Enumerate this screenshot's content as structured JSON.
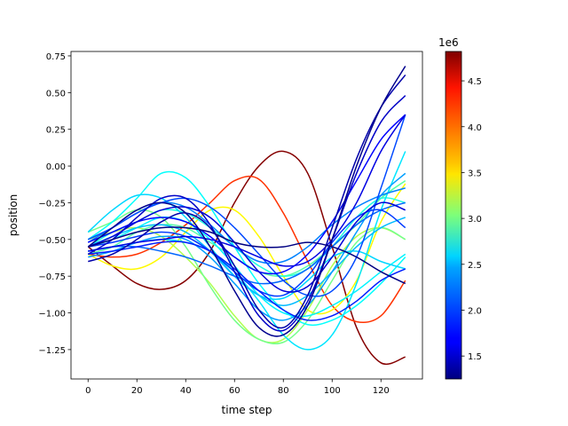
{
  "chart_data": {
    "type": "line",
    "xlabel": "time step",
    "ylabel": "position",
    "xlim": [
      -7,
      137
    ],
    "ylim": [
      -1.45,
      0.78
    ],
    "xticks": [
      0,
      20,
      40,
      60,
      80,
      100,
      120
    ],
    "yticks": [
      0.75,
      0.5,
      0.25,
      0.0,
      -0.25,
      -0.5,
      -0.75,
      -1.0,
      -1.25
    ],
    "grid": false,
    "legend": "none",
    "colormap": "jet",
    "colorbar": {
      "min": 1250000,
      "max": 4820000,
      "ticks": [
        1.5,
        2.0,
        2.5,
        3.0,
        3.5,
        4.0,
        4.5
      ],
      "offset_label": "1e6"
    },
    "series": [
      {
        "c": 4800000,
        "x": [
          0,
          10,
          20,
          30,
          40,
          50,
          60,
          70,
          80,
          90,
          100,
          110,
          120,
          130
        ],
        "y": [
          -0.55,
          -0.68,
          -0.8,
          -0.84,
          -0.78,
          -0.58,
          -0.25,
          0.0,
          0.1,
          -0.05,
          -0.55,
          -1.1,
          -1.34,
          -1.3
        ]
      },
      {
        "c": 4200000,
        "x": [
          0,
          10,
          20,
          30,
          40,
          50,
          60,
          70,
          80,
          90,
          100,
          110,
          120,
          130
        ],
        "y": [
          -0.6,
          -0.62,
          -0.6,
          -0.52,
          -0.4,
          -0.25,
          -0.1,
          -0.09,
          -0.32,
          -0.65,
          -0.95,
          -1.06,
          -1.02,
          -0.78
        ]
      },
      {
        "c": 3500000,
        "x": [
          0,
          10,
          20,
          30,
          40,
          50,
          60,
          70,
          80,
          90,
          100,
          110,
          120,
          130
        ],
        "y": [
          -0.6,
          -0.68,
          -0.7,
          -0.62,
          -0.45,
          -0.3,
          -0.3,
          -0.48,
          -0.75,
          -0.98,
          -0.98,
          -0.78,
          -0.38,
          -0.12
        ]
      },
      {
        "c": 3200000,
        "x": [
          0,
          10,
          20,
          30,
          40,
          50,
          60,
          70,
          80,
          90,
          100,
          110,
          120,
          130
        ],
        "y": [
          -0.5,
          -0.45,
          -0.42,
          -0.48,
          -0.62,
          -0.8,
          -1.02,
          -1.18,
          -1.18,
          -0.98,
          -0.68,
          -0.48,
          -0.42,
          -0.5
        ]
      },
      {
        "c": 3000000,
        "x": [
          0,
          10,
          20,
          30,
          40,
          50,
          60,
          70,
          80,
          90,
          100,
          110,
          120,
          130
        ],
        "y": [
          -0.45,
          -0.38,
          -0.3,
          -0.35,
          -0.55,
          -0.82,
          -1.05,
          -1.18,
          -1.2,
          -1.05,
          -0.78,
          -0.52,
          -0.42,
          -0.5
        ]
      },
      {
        "c": 2900000,
        "x": [
          0,
          10,
          20,
          30,
          40,
          50,
          60,
          70,
          80,
          90,
          100,
          110,
          120,
          130
        ],
        "y": [
          -0.6,
          -0.55,
          -0.45,
          -0.4,
          -0.42,
          -0.52,
          -0.62,
          -0.72,
          -0.75,
          -0.68,
          -0.55,
          -0.4,
          -0.22,
          -0.1
        ]
      },
      {
        "c": 2700000,
        "x": [
          0,
          10,
          20,
          30,
          40,
          50,
          60,
          70,
          80,
          90,
          100,
          110,
          120,
          130
        ],
        "y": [
          -0.55,
          -0.45,
          -0.38,
          -0.3,
          -0.32,
          -0.42,
          -0.55,
          -0.68,
          -0.75,
          -0.7,
          -0.55,
          -0.35,
          -0.22,
          -0.25
        ]
      },
      {
        "c": 2600000,
        "x": [
          0,
          10,
          20,
          30,
          40,
          50,
          60,
          70,
          80,
          90,
          100,
          110,
          120,
          130
        ],
        "y": [
          -0.5,
          -0.38,
          -0.22,
          -0.05,
          -0.08,
          -0.28,
          -0.55,
          -0.8,
          -0.98,
          -1.08,
          -1.05,
          -0.95,
          -0.8,
          -0.62
        ]
      },
      {
        "c": 2550000,
        "x": [
          0,
          10,
          20,
          30,
          40,
          50,
          60,
          70,
          80,
          90,
          100,
          110,
          120,
          130
        ],
        "y": [
          -0.55,
          -0.5,
          -0.42,
          -0.35,
          -0.38,
          -0.5,
          -0.68,
          -0.88,
          -1.0,
          -1.02,
          -0.95,
          -0.85,
          -0.72,
          -0.6
        ]
      },
      {
        "c": 2500000,
        "x": [
          0,
          10,
          20,
          30,
          40,
          50,
          60,
          70,
          80,
          90,
          100,
          110,
          120,
          130
        ],
        "y": [
          -0.58,
          -0.55,
          -0.52,
          -0.5,
          -0.52,
          -0.58,
          -0.72,
          -0.92,
          -1.15,
          -1.25,
          -1.15,
          -0.8,
          -0.3,
          0.1
        ]
      },
      {
        "c": 2450000,
        "x": [
          0,
          10,
          20,
          30,
          40,
          50,
          60,
          70,
          80,
          90,
          100,
          110,
          120,
          130
        ],
        "y": [
          -0.45,
          -0.3,
          -0.2,
          -0.22,
          -0.35,
          -0.55,
          -0.75,
          -0.88,
          -0.9,
          -0.78,
          -0.62,
          -0.58,
          -0.65,
          -0.7
        ]
      },
      {
        "c": 2350000,
        "x": [
          0,
          10,
          20,
          30,
          40,
          50,
          60,
          70,
          80,
          90,
          100,
          110,
          120,
          130
        ],
        "y": [
          -0.55,
          -0.48,
          -0.42,
          -0.4,
          -0.45,
          -0.58,
          -0.75,
          -0.88,
          -0.95,
          -0.88,
          -0.72,
          -0.55,
          -0.42,
          -0.35
        ]
      },
      {
        "c": 2250000,
        "x": [
          0,
          10,
          20,
          30,
          40,
          50,
          60,
          70,
          80,
          90,
          100,
          110,
          120,
          130
        ],
        "y": [
          -0.62,
          -0.58,
          -0.52,
          -0.48,
          -0.5,
          -0.62,
          -0.8,
          -0.98,
          -1.05,
          -0.95,
          -0.72,
          -0.45,
          -0.2,
          -0.05
        ]
      },
      {
        "c": 2150000,
        "x": [
          0,
          10,
          20,
          30,
          40,
          50,
          60,
          70,
          80,
          90,
          100,
          110,
          120,
          130
        ],
        "y": [
          -0.52,
          -0.42,
          -0.32,
          -0.25,
          -0.28,
          -0.4,
          -0.55,
          -0.65,
          -0.65,
          -0.55,
          -0.4,
          -0.28,
          -0.2,
          -0.15
        ]
      },
      {
        "c": 2050000,
        "x": [
          0,
          10,
          20,
          30,
          40,
          50,
          60,
          70,
          80,
          90,
          100,
          110,
          120,
          130
        ],
        "y": [
          -0.58,
          -0.55,
          -0.55,
          -0.58,
          -0.62,
          -0.68,
          -0.75,
          -0.8,
          -0.78,
          -0.7,
          -0.55,
          -0.4,
          -0.3,
          -0.25
        ]
      },
      {
        "c": 1950000,
        "x": [
          0,
          10,
          20,
          30,
          40,
          50,
          60,
          70,
          80,
          90,
          100,
          110,
          120,
          130
        ],
        "y": [
          -0.5,
          -0.42,
          -0.32,
          -0.25,
          -0.22,
          -0.28,
          -0.42,
          -0.6,
          -0.78,
          -0.88,
          -0.85,
          -0.62,
          -0.15,
          0.35
        ]
      },
      {
        "c": 1900000,
        "x": [
          0,
          10,
          20,
          30,
          40,
          50,
          60,
          70,
          80,
          90,
          100,
          110,
          120,
          130
        ],
        "y": [
          -0.55,
          -0.52,
          -0.48,
          -0.45,
          -0.48,
          -0.58,
          -0.72,
          -0.85,
          -0.88,
          -0.75,
          -0.52,
          -0.35,
          -0.3,
          -0.42
        ]
      },
      {
        "c": 1800000,
        "x": [
          0,
          10,
          20,
          30,
          40,
          50,
          60,
          70,
          80,
          90,
          100,
          110,
          120,
          130
        ],
        "y": [
          -0.6,
          -0.58,
          -0.55,
          -0.52,
          -0.52,
          -0.58,
          -0.7,
          -0.85,
          -0.98,
          -1.05,
          -1.02,
          -0.92,
          -0.78,
          -0.7
        ]
      },
      {
        "c": 1700000,
        "x": [
          0,
          10,
          20,
          30,
          40,
          50,
          60,
          70,
          80,
          90,
          100,
          110,
          120,
          130
        ],
        "y": [
          -0.52,
          -0.45,
          -0.38,
          -0.35,
          -0.38,
          -0.48,
          -0.62,
          -0.72,
          -0.72,
          -0.6,
          -0.38,
          -0.1,
          0.18,
          0.35
        ]
      },
      {
        "c": 1600000,
        "x": [
          0,
          10,
          20,
          30,
          40,
          50,
          60,
          70,
          80,
          90,
          100,
          110,
          120,
          130
        ],
        "y": [
          -0.58,
          -0.55,
          -0.52,
          -0.5,
          -0.48,
          -0.5,
          -0.55,
          -0.62,
          -0.68,
          -0.65,
          -0.5,
          -0.25,
          0.1,
          0.35
        ]
      },
      {
        "c": 1550000,
        "x": [
          0,
          10,
          20,
          30,
          40,
          50,
          60,
          70,
          80,
          90,
          100,
          110,
          120,
          130
        ],
        "y": [
          -0.55,
          -0.48,
          -0.38,
          -0.3,
          -0.28,
          -0.35,
          -0.52,
          -0.72,
          -0.85,
          -0.82,
          -0.62,
          -0.38,
          -0.25,
          -0.3
        ]
      },
      {
        "c": 1500000,
        "x": [
          0,
          10,
          20,
          30,
          40,
          50,
          60,
          70,
          80,
          90,
          100,
          110,
          120,
          130
        ],
        "y": [
          -0.6,
          -0.5,
          -0.35,
          -0.22,
          -0.22,
          -0.4,
          -0.72,
          -1.02,
          -1.12,
          -0.92,
          -0.5,
          -0.05,
          0.3,
          0.48
        ]
      },
      {
        "c": 1400000,
        "x": [
          0,
          10,
          20,
          30,
          40,
          50,
          60,
          70,
          80,
          90,
          100,
          110,
          120,
          130
        ],
        "y": [
          -0.65,
          -0.6,
          -0.5,
          -0.38,
          -0.32,
          -0.42,
          -0.68,
          -0.98,
          -1.1,
          -0.88,
          -0.42,
          0.05,
          0.4,
          0.62
        ]
      },
      {
        "c": 1300000,
        "x": [
          0,
          10,
          20,
          30,
          40,
          50,
          60,
          70,
          80,
          90,
          100,
          110,
          120,
          130
        ],
        "y": [
          -0.55,
          -0.42,
          -0.3,
          -0.25,
          -0.32,
          -0.55,
          -0.85,
          -1.1,
          -1.15,
          -0.95,
          -0.5,
          0.0,
          0.4,
          0.68
        ]
      },
      {
        "c": 1260000,
        "x": [
          0,
          10,
          20,
          30,
          40,
          50,
          60,
          70,
          80,
          90,
          100,
          110,
          120,
          130
        ],
        "y": [
          -0.55,
          -0.5,
          -0.45,
          -0.42,
          -0.42,
          -0.45,
          -0.52,
          -0.55,
          -0.55,
          -0.52,
          -0.55,
          -0.62,
          -0.72,
          -0.8
        ]
      }
    ]
  }
}
